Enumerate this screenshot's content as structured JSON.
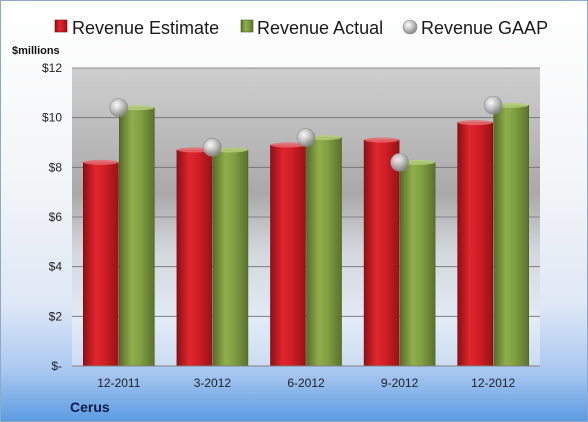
{
  "chart_data": {
    "type": "bar",
    "ylabel": "$millions",
    "company": "Cerus",
    "categories": [
      "12-2011",
      "3-2012",
      "6-2012",
      "9-2012",
      "12-2012"
    ],
    "ylim": [
      0,
      12
    ],
    "yticks": [
      0,
      2,
      4,
      6,
      8,
      10,
      12
    ],
    "ytick_labels": [
      "$-",
      "$2",
      "$4",
      "$6",
      "$8",
      "$10",
      "$12"
    ],
    "grid": true,
    "legend_position": "top",
    "series": [
      {
        "name": "Revenue Estimate",
        "kind": "bar",
        "color": "#c8161d",
        "values": [
          8.2,
          8.7,
          8.9,
          9.1,
          9.8
        ]
      },
      {
        "name": "Revenue Actual",
        "kind": "bar",
        "color": "#77933c",
        "values": [
          10.4,
          8.7,
          9.2,
          8.2,
          10.5
        ]
      },
      {
        "name": "Revenue GAAP",
        "kind": "marker",
        "color": "#b8b8b8",
        "values": [
          10.4,
          8.8,
          9.2,
          8.2,
          10.5
        ]
      }
    ]
  }
}
